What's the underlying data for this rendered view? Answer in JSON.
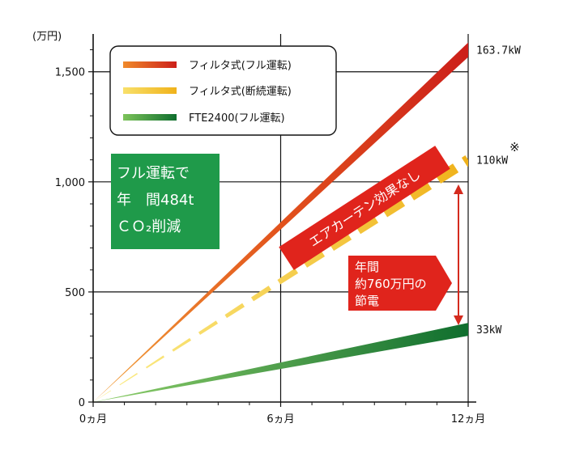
{
  "chart_data": {
    "type": "line",
    "ylabel": "(万円)",
    "x": [
      0,
      6,
      12
    ],
    "x_tick_labels": [
      "0ヵ月",
      "6ヵ月",
      "12ヵ月"
    ],
    "xlim": [
      0,
      12
    ],
    "y_ticks": [
      0,
      500,
      1000,
      1500
    ],
    "y_tick_labels": [
      "0",
      "500",
      "1,000",
      "1,500"
    ],
    "ylim": [
      0,
      1690
    ],
    "grid": true,
    "legend_position": "top-left",
    "series": [
      {
        "name": "フィルタ式(フル運転)",
        "values": [
          0,
          800,
          1600
        ],
        "end_label": "163.7kW",
        "color": "#d42a1e",
        "style": "solid"
      },
      {
        "name": "フィルタ式(断続運転)",
        "values": [
          0,
          550,
          1100
        ],
        "end_label": "110kW",
        "color": "#f2d21a",
        "style": "dashed"
      },
      {
        "name": "FTE2400(フル運転)",
        "values": [
          0,
          165,
          330
        ],
        "end_label": "33kW",
        "color": "#1e8a3a",
        "style": "solid"
      }
    ],
    "annotations": {
      "green_box": [
        "フル運転で",
        "年　間484t",
        "ＣＯ₂削減"
      ],
      "banner": "エアカーテン効果なし",
      "callout": [
        "年間",
        "約760万円の",
        "節電"
      ],
      "note_mark": "※"
    }
  }
}
